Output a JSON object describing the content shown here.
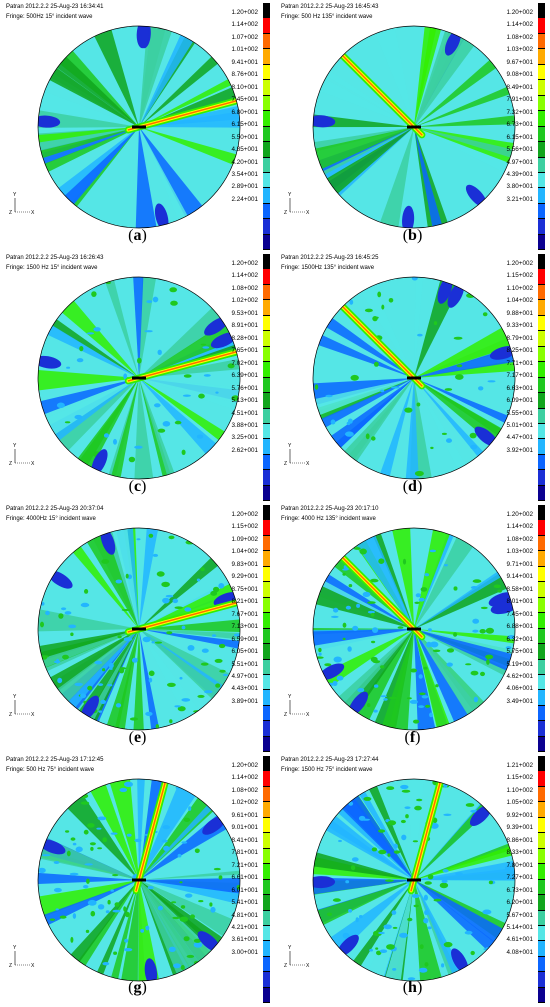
{
  "panels": [
    {
      "id": "a",
      "header": "Patran 2012.2.2 25-Aug-23 16:34:41",
      "fringe": "Fringe: 500Hz 15° incident wave",
      "caption_letter": "a",
      "scale": [
        "1.20+002",
        "1.14+002",
        "1.07+002",
        "1.01+002",
        "9.41+001",
        "8.76+001",
        "8.10+001",
        "7.45+001",
        "6.80+001",
        "6.15+001",
        "5.50+001",
        "4.85+001",
        "4.20+001",
        "3.54+001",
        "2.89+001",
        "2.24+001"
      ],
      "beam_angle_deg": 15
    },
    {
      "id": "b",
      "header": "Patran 2012.2.2 25-Aug-23 16:45:43",
      "fringe": "Fringe: 500 Hz  135° incident wave",
      "caption_letter": "b",
      "scale": [
        "1.20+002",
        "1.14+002",
        "1.08+002",
        "1.03+002",
        "9.67+001",
        "9.08+001",
        "8.49+001",
        "7.91+001",
        "7.32+001",
        "6.73+001",
        "6.15+001",
        "5.56+001",
        "4.97+001",
        "4.39+001",
        "3.80+001",
        "3.21+001"
      ],
      "beam_angle_deg": 135
    },
    {
      "id": "c",
      "header": "Patran 2012.2.2 25-Aug-23 16:26:43",
      "fringe": "Fringe: 1500 Hz  15° incident wave",
      "caption_letter": "c",
      "scale": [
        "1.20+002",
        "1.14+002",
        "1.08+002",
        "1.02+002",
        "9.53+001",
        "8.91+001",
        "8.28+001",
        "7.65+001",
        "7.02+001",
        "6.39+001",
        "5.76+001",
        "5.13+001",
        "4.51+001",
        "3.88+001",
        "3.25+001",
        "2.62+001"
      ],
      "beam_angle_deg": 15
    },
    {
      "id": "d",
      "header": "Patran 2012.2.2 25-Aug-23 16:45:25",
      "fringe": "Fringe: 1500Hz  135° incident wave",
      "caption_letter": "d",
      "scale": [
        "1.20+002",
        "1.15+002",
        "1.10+002",
        "1.04+002",
        "9.88+001",
        "9.33+001",
        "8.79+001",
        "8.25+001",
        "7.71+001",
        "7.17+001",
        "6.63+001",
        "6.09+001",
        "5.55+001",
        "5.01+001",
        "4.47+001",
        "3.92+001"
      ],
      "beam_angle_deg": 135
    },
    {
      "id": "e",
      "header": "Patran 2012.2.2 25-Aug-23 20:37:04",
      "fringe": "Fringe: 4000Hz  15° incident wave",
      "caption_letter": "e",
      "scale": [
        "1.20+002",
        "1.15+002",
        "1.09+002",
        "1.04+002",
        "9.83+001",
        "9.29+001",
        "8.75+001",
        "8.21+001",
        "7.67+001",
        "7.13+001",
        "6.59+001",
        "6.05+001",
        "5.51+001",
        "4.97+001",
        "4.43+001",
        "3.89+001"
      ],
      "beam_angle_deg": 15
    },
    {
      "id": "f",
      "header": "Patran 2012.2.2 25-Aug-23 20:17:10",
      "fringe": "Fringe: 4000 Hz  135° incident wave",
      "caption_letter": "f",
      "scale": [
        "1.20+002",
        "1.14+002",
        "1.08+002",
        "1.03+002",
        "9.71+001",
        "9.14+001",
        "8.58+001",
        "8.01+001",
        "7.45+001",
        "6.88+001",
        "6.32+001",
        "5.75+001",
        "5.19+001",
        "4.62+001",
        "4.06+001",
        "3.49+001"
      ],
      "beam_angle_deg": 135
    },
    {
      "id": "g",
      "header": "Patran 2012.2.2 25-Aug-23 17:12:45",
      "fringe": "Fringe: 500 Hz  75° incident wave",
      "caption_letter": "g",
      "scale": [
        "1.20+002",
        "1.14+002",
        "1.08+002",
        "1.02+002",
        "9.61+001",
        "9.01+001",
        "8.41+001",
        "7.81+001",
        "7.21+001",
        "6.61+001",
        "6.01+001",
        "5.41+001",
        "4.81+001",
        "4.21+001",
        "3.61+001",
        "3.00+001"
      ],
      "beam_angle_deg": 75
    },
    {
      "id": "h",
      "header": "Patran 2012.2.2 25-Aug-23 17:27:44",
      "fringe": "Fringe: 1500 Hz  75° incident wave",
      "caption_letter": "h",
      "scale": [
        "1.21+002",
        "1.15+002",
        "1.10+002",
        "1.05+002",
        "9.92+001",
        "9.39+001",
        "8.86+001",
        "8.33+001",
        "7.80+001",
        "7.27+001",
        "6.73+001",
        "6.20+001",
        "5.67+001",
        "5.14+001",
        "4.61+001",
        "4.08+001"
      ],
      "beam_angle_deg": 75
    }
  ],
  "fringe_colors": [
    "#000000",
    "#ff0000",
    "#ff6a00",
    "#ffaa00",
    "#ffff00",
    "#ccff00",
    "#88ff00",
    "#33ee00",
    "#1fc81f",
    "#11a51d",
    "#3ccfa0",
    "#55e6e6",
    "#22b5ff",
    "#0b66ff",
    "#1a2fd6",
    "#0a0090"
  ],
  "axis_labels": {
    "y": "Y",
    "z": "Z",
    "x": "X"
  }
}
